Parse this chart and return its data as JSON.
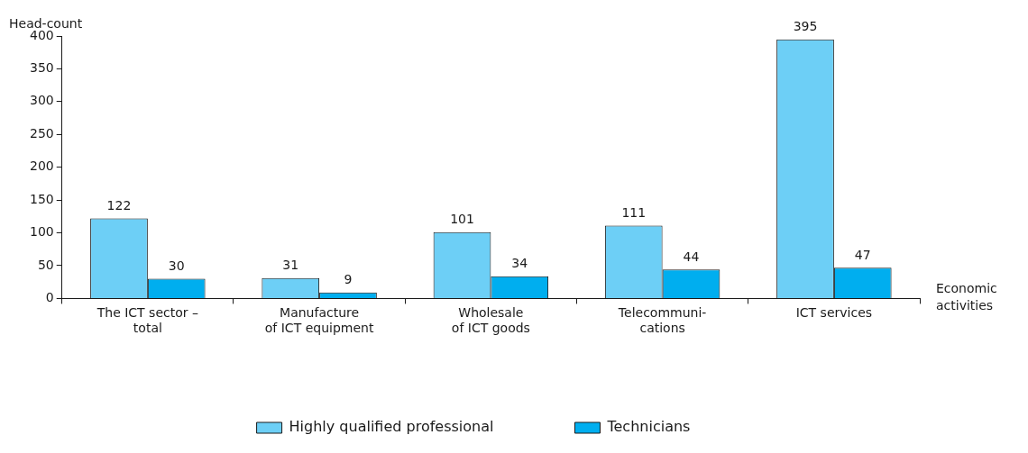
{
  "chart_data": {
    "type": "bar",
    "ylabel": "Head-count",
    "xlabel": "Economic activities",
    "categories": [
      "The ICT sector –\ntotal",
      "Manufacture\nof ICT equipment",
      "Wholesale\nof ICT goods",
      "Telecommuni-\ncations",
      "ICT services"
    ],
    "series": [
      {
        "name": "Highly qualified professional",
        "color": "#6dcff6",
        "values": [
          122,
          31,
          101,
          111,
          395
        ]
      },
      {
        "name": "Technicians",
        "color": "#00aeef",
        "values": [
          30,
          9,
          34,
          44,
          47
        ]
      }
    ],
    "ylim": [
      0,
      400
    ],
    "yticks": [
      0,
      50,
      100,
      150,
      200,
      250,
      300,
      350,
      400
    ],
    "grid": false,
    "legend": "bottom",
    "data_labels": true
  }
}
